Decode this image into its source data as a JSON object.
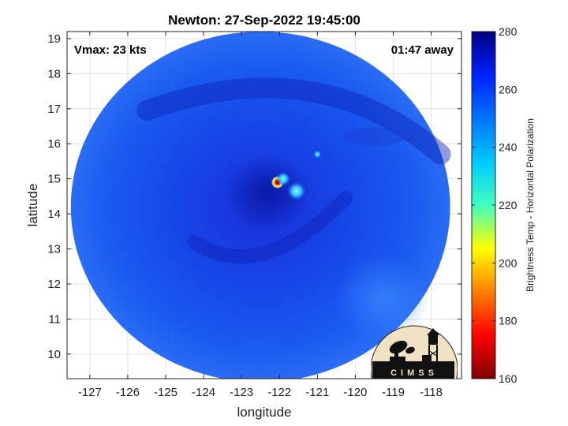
{
  "chart_data": {
    "type": "heatmap",
    "title": "Newton: 27-Sep-2022 19:45:00",
    "xlabel": "longitude",
    "ylabel": "latitude",
    "xlim": [
      -127.6,
      -117.2
    ],
    "ylim": [
      9.3,
      19.2
    ],
    "x_ticks": [
      -127,
      -126,
      -125,
      -124,
      -123,
      -122,
      -121,
      -120,
      -119,
      -118
    ],
    "y_ticks": [
      10,
      11,
      12,
      13,
      14,
      15,
      16,
      17,
      18,
      19
    ],
    "grid": true,
    "annotations": {
      "top_left": "Vmax: 23 kts",
      "top_right": "01:47 away"
    },
    "colorbar": {
      "label": "Brightness Temp - Horizontal Polarization",
      "range": [
        160,
        280
      ],
      "ticks": [
        280,
        260,
        240,
        220,
        200,
        180,
        160
      ],
      "colormap": [
        "#7f0000",
        "#ff0000",
        "#ffff00",
        "#00ffff",
        "#0000ff",
        "#00007f"
      ]
    },
    "swath": {
      "center": [
        -122.5,
        14.2
      ],
      "radius_lon": 5.0,
      "radius_lat": 5.0,
      "background_value": 262
    },
    "features": [
      {
        "name": "cold core",
        "lon": -122.05,
        "lat": 14.9,
        "value": 180
      },
      {
        "name": "convective cell",
        "lon": -121.55,
        "lat": 14.65,
        "value": 240
      },
      {
        "name": "convective cell",
        "lon": -121.9,
        "lat": 15.0,
        "value": 245
      },
      {
        "name": "convective cell",
        "lon": -121.0,
        "lat": 15.7,
        "value": 248
      },
      {
        "name": "cloud band",
        "lon": -119.5,
        "lat": 16.2,
        "value": 266
      }
    ]
  },
  "logo": {
    "text": "CIMSS"
  }
}
